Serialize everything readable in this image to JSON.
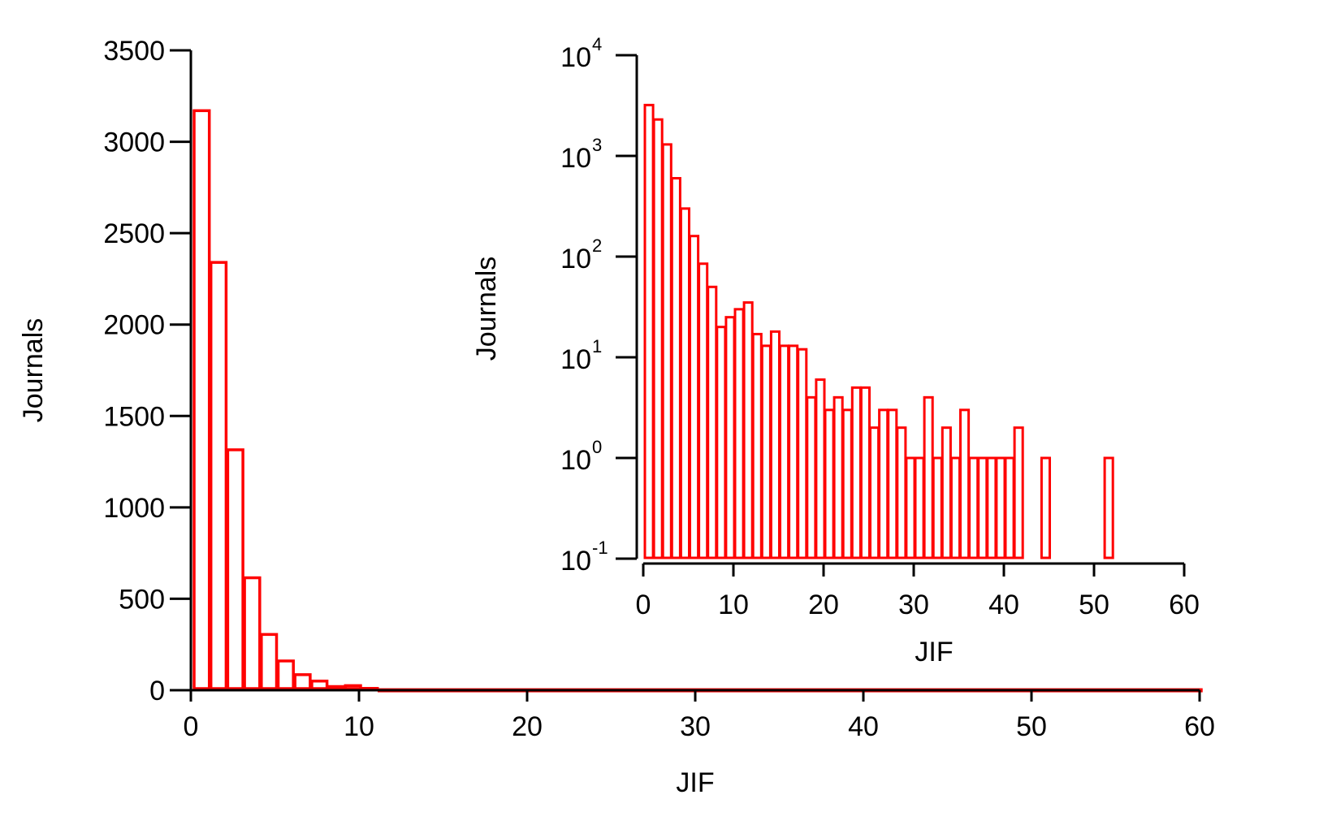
{
  "chart_data": [
    {
      "type": "bar",
      "panel": "main",
      "xlabel": "JIF",
      "ylabel": "Journals",
      "xlim": [
        0,
        60
      ],
      "ylim": [
        0,
        3500
      ],
      "yscale": "linear",
      "xticks": [
        0,
        10,
        20,
        30,
        40,
        50,
        60
      ],
      "xtick_labels": [
        "0",
        "10",
        "20",
        "30",
        "40",
        "50",
        "60"
      ],
      "yticks": [
        0,
        500,
        1000,
        1500,
        2000,
        2500,
        3000,
        3500
      ],
      "ytick_labels": [
        "0",
        "500",
        "1000",
        "1500",
        "2000",
        "2500",
        "3000",
        "3500"
      ],
      "bin_width": 1,
      "bins": [
        {
          "x0": 0,
          "x1": 1,
          "count": 3170
        },
        {
          "x0": 1,
          "x1": 2,
          "count": 2340
        },
        {
          "x0": 2,
          "x1": 3,
          "count": 1315
        },
        {
          "x0": 3,
          "x1": 4,
          "count": 615
        },
        {
          "x0": 4,
          "x1": 5,
          "count": 305
        },
        {
          "x0": 5,
          "x1": 6,
          "count": 160
        },
        {
          "x0": 6,
          "x1": 7,
          "count": 85
        },
        {
          "x0": 7,
          "x1": 8,
          "count": 50
        },
        {
          "x0": 8,
          "x1": 9,
          "count": 20
        },
        {
          "x0": 9,
          "x1": 10,
          "count": 25
        },
        {
          "x0": 10,
          "x1": 11,
          "count": 10
        },
        {
          "x0": 11,
          "x1": 60,
          "count": 3
        }
      ],
      "color": "#ff0000",
      "grid": false
    },
    {
      "type": "bar",
      "panel": "inset",
      "xlabel": "JIF",
      "ylabel": "Journals",
      "xlim": [
        0,
        60
      ],
      "ylim": [
        0.1,
        10000
      ],
      "yscale": "log",
      "xticks": [
        0,
        10,
        20,
        30,
        40,
        50,
        60
      ],
      "xtick_labels": [
        "0",
        "10",
        "20",
        "30",
        "40",
        "50",
        "60"
      ],
      "yticks": [
        0.1,
        1,
        10,
        100,
        1000,
        10000
      ],
      "ytick_labels": [
        {
          "base": "10",
          "exp": "-1"
        },
        {
          "base": "10",
          "exp": "0"
        },
        {
          "base": "10",
          "exp": "1"
        },
        {
          "base": "10",
          "exp": "2"
        },
        {
          "base": "10",
          "exp": "3"
        },
        {
          "base": "10",
          "exp": "4"
        }
      ],
      "bin_width": 1,
      "x": [
        0,
        1,
        2,
        3,
        4,
        5,
        6,
        7,
        8,
        9,
        10,
        11,
        12,
        13,
        14,
        15,
        16,
        17,
        18,
        19,
        20,
        21,
        22,
        23,
        24,
        25,
        26,
        27,
        28,
        29,
        30,
        31,
        32,
        33,
        34,
        35,
        36,
        37,
        38,
        39,
        40,
        41,
        42,
        43,
        44,
        45,
        46,
        47,
        48,
        49,
        50,
        51
      ],
      "counts": [
        3200,
        2300,
        1300,
        600,
        300,
        160,
        85,
        50,
        20,
        25,
        30,
        35,
        17,
        13,
        18,
        13,
        13,
        12,
        4,
        6,
        3,
        4,
        3,
        5,
        5,
        2,
        3,
        3,
        2,
        1,
        1,
        4,
        1,
        2,
        1,
        3,
        1,
        1,
        1,
        1,
        1,
        2,
        0,
        0,
        1,
        0,
        0,
        0,
        0,
        0,
        0,
        1
      ],
      "color": "#ff0000",
      "grid": false
    }
  ]
}
